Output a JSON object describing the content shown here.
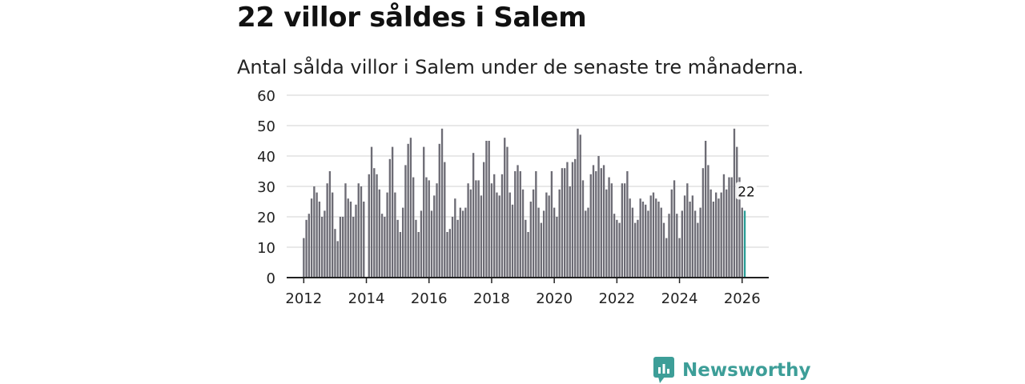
{
  "header": {
    "title": "22 villor såldes i Salem",
    "subtitle": "Antal sålda villor i Salem under de senaste tre månaderna."
  },
  "chart_data": {
    "type": "bar",
    "title": "22 villor såldes i Salem",
    "subtitle": "Antal sålda villor i Salem under de senaste tre månaderna.",
    "xlabel": "",
    "ylabel": "",
    "ylim": [
      0,
      60
    ],
    "yticks": [
      0,
      10,
      20,
      30,
      40,
      50,
      60
    ],
    "xlim": [
      2011.25,
      2026.85
    ],
    "xticks": [
      "2012",
      "2014",
      "2016",
      "2018",
      "2020",
      "2022",
      "2024",
      "2026"
    ],
    "grid": true,
    "start": [
      2012,
      1
    ],
    "values": [
      13,
      19,
      21,
      26,
      30,
      28,
      25,
      20,
      22,
      31,
      35,
      28,
      16,
      12,
      20,
      20,
      31,
      26,
      25,
      20,
      24,
      31,
      30,
      25,
      0,
      34,
      43,
      36,
      34,
      29,
      21,
      20,
      28,
      39,
      43,
      28,
      19,
      15,
      23,
      37,
      44,
      46,
      33,
      19,
      15,
      22,
      43,
      33,
      32,
      22,
      27,
      31,
      44,
      49,
      38,
      15,
      16,
      20,
      26,
      19,
      23,
      22,
      23,
      31,
      29,
      41,
      32,
      32,
      27,
      38,
      45,
      45,
      31,
      34,
      28,
      27,
      34,
      46,
      43,
      28,
      24,
      35,
      37,
      35,
      29,
      19,
      15,
      25,
      29,
      35,
      23,
      18,
      22,
      28,
      27,
      35,
      23,
      20,
      29,
      36,
      36,
      38,
      30,
      38,
      39,
      49,
      47,
      32,
      22,
      23,
      34,
      37,
      35,
      40,
      36,
      37,
      29,
      33,
      31,
      21,
      19,
      18,
      31,
      31,
      35,
      26,
      23,
      18,
      19,
      26,
      25,
      24,
      22,
      27,
      28,
      26,
      25,
      23,
      18,
      13,
      21,
      29,
      32,
      21,
      13,
      22,
      27,
      31,
      25,
      27,
      22,
      18,
      23,
      36,
      45,
      37,
      29,
      25,
      28,
      26,
      28,
      34,
      29,
      33,
      33,
      49,
      43,
      33,
      23,
      22
    ],
    "highlight": {
      "label": "22",
      "value": 22,
      "color": "#2a9d95"
    },
    "bar_color": "#6d6c75"
  },
  "branding": {
    "name": "Newsworthy",
    "color": "#3d9e98"
  }
}
